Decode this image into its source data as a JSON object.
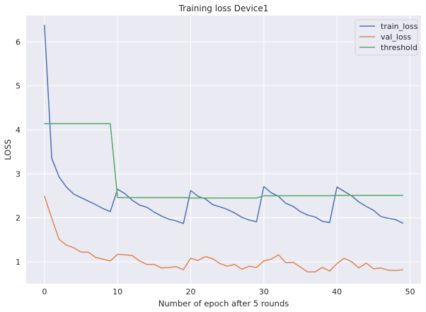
{
  "chart_data": {
    "type": "line",
    "title": "Training loss Device1",
    "xlabel": "Number of epoch after 5 rounds",
    "ylabel": "LOSS",
    "xlim": [
      -2.5,
      51.5
    ],
    "ylim": [
      0.5,
      6.6
    ],
    "xticks": [
      0,
      10,
      20,
      30,
      40,
      50
    ],
    "yticks": [
      1,
      2,
      3,
      4,
      5,
      6
    ],
    "grid": true,
    "legend_position": "top-right",
    "x": [
      0,
      1,
      2,
      3,
      4,
      5,
      6,
      7,
      8,
      9,
      10,
      11,
      12,
      13,
      14,
      15,
      16,
      17,
      18,
      19,
      20,
      21,
      22,
      23,
      24,
      25,
      26,
      27,
      28,
      29,
      30,
      31,
      32,
      33,
      34,
      35,
      36,
      37,
      38,
      39,
      40,
      41,
      42,
      43,
      44,
      45,
      46,
      47,
      48,
      49
    ],
    "series": [
      {
        "name": "train_loss",
        "color": "#4c72b0",
        "values": [
          6.38,
          3.35,
          2.93,
          2.7,
          2.54,
          2.46,
          2.38,
          2.3,
          2.21,
          2.14,
          2.65,
          2.55,
          2.4,
          2.29,
          2.24,
          2.13,
          2.04,
          1.97,
          1.93,
          1.87,
          2.62,
          2.49,
          2.43,
          2.3,
          2.25,
          2.19,
          2.11,
          2.01,
          1.95,
          1.91,
          2.71,
          2.57,
          2.49,
          2.33,
          2.26,
          2.14,
          2.06,
          2.02,
          1.92,
          1.89,
          2.7,
          2.6,
          2.5,
          2.36,
          2.26,
          2.17,
          2.03,
          1.99,
          1.96,
          1.88
        ]
      },
      {
        "name": "val_loss",
        "color": "#dd8452",
        "values": [
          2.49,
          1.99,
          1.51,
          1.38,
          1.32,
          1.22,
          1.22,
          1.1,
          1.06,
          1.02,
          1.17,
          1.16,
          1.14,
          1.02,
          0.94,
          0.94,
          0.86,
          0.87,
          0.89,
          0.82,
          1.08,
          1.03,
          1.12,
          1.07,
          0.96,
          0.9,
          0.94,
          0.83,
          0.9,
          0.87,
          1.02,
          1.06,
          1.16,
          0.98,
          0.99,
          0.88,
          0.77,
          0.77,
          0.87,
          0.79,
          0.96,
          1.08,
          1.0,
          0.86,
          0.97,
          0.84,
          0.86,
          0.81,
          0.8,
          0.82
        ]
      },
      {
        "name": "threshold",
        "color": "#55a868",
        "values": [
          4.14,
          4.14,
          4.14,
          4.14,
          4.14,
          4.14,
          4.14,
          4.14,
          4.14,
          4.14,
          2.46,
          2.46,
          2.46,
          2.46,
          2.46,
          2.46,
          2.46,
          2.46,
          2.46,
          2.46,
          2.45,
          2.45,
          2.45,
          2.45,
          2.45,
          2.45,
          2.45,
          2.45,
          2.45,
          2.45,
          2.5,
          2.5,
          2.5,
          2.5,
          2.5,
          2.5,
          2.5,
          2.5,
          2.5,
          2.5,
          2.51,
          2.51,
          2.51,
          2.51,
          2.51,
          2.51,
          2.51,
          2.51,
          2.51,
          2.51
        ]
      }
    ]
  }
}
